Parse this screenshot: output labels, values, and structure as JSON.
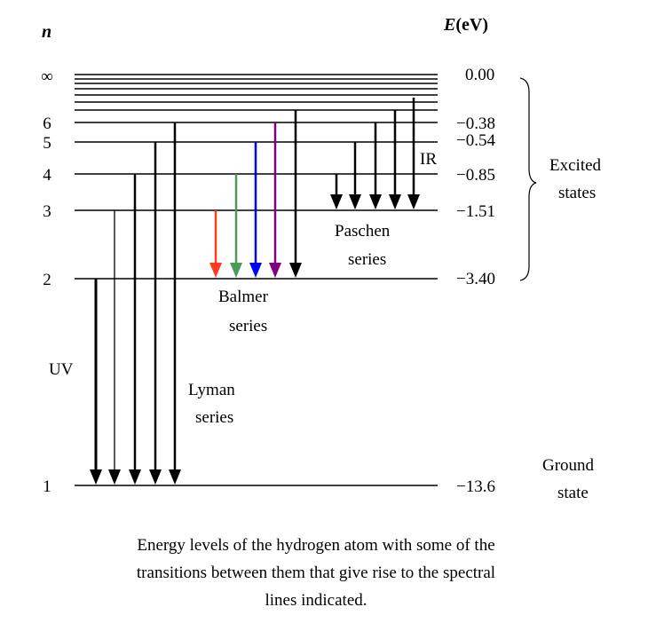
{
  "header": {
    "n_label": "n",
    "energy_label": "E",
    "energy_unit": "(eV)"
  },
  "levels": [
    {
      "n": "1",
      "energy": "−13.6"
    },
    {
      "n": "2",
      "energy": "−3.40"
    },
    {
      "n": "3",
      "energy": "−1.51"
    },
    {
      "n": "4",
      "energy": "−0.85"
    },
    {
      "n": "5",
      "energy": "−0.54"
    },
    {
      "n": "6",
      "energy": "−0.38"
    },
    {
      "n": "∞",
      "energy": "0.00"
    }
  ],
  "series": {
    "lyman": {
      "line1": "Lyman",
      "line2": "series"
    },
    "balmer": {
      "line1": "Balmer",
      "line2": "series"
    },
    "paschen": {
      "line1": "Paschen",
      "line2": "series"
    }
  },
  "region_labels": {
    "uv": "UV",
    "ir": "IR"
  },
  "brace_labels": {
    "excited": {
      "line1": "Excited",
      "line2": "states"
    },
    "ground": {
      "line1": "Ground",
      "line2": "state"
    }
  },
  "caption": {
    "line1": "Energy levels of the hydrogen atom with some of the",
    "line2": "transitions between them that give rise to the spectral",
    "line3": "lines indicated."
  },
  "colors": {
    "line": "#000000",
    "caption": "#ff0000",
    "balmer_red": "#ff3b1f",
    "balmer_green": "#4a9a5a",
    "balmer_blue": "#0000ff",
    "balmer_violet": "#800080"
  }
}
